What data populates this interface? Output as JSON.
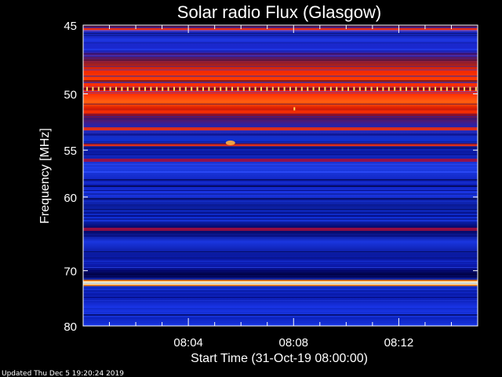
{
  "chart_data": {
    "type": "heatmap",
    "title": "Solar radio Flux (Glasgow)",
    "xlabel": "Start Time (31-Oct-19 08:00:00)",
    "ylabel": "Frequency [MHz]",
    "x_range_minutes": [
      0,
      15
    ],
    "x_ticks": [
      {
        "label": "08:04",
        "minutes": 4
      },
      {
        "label": "08:08",
        "minutes": 8
      },
      {
        "label": "08:12",
        "minutes": 12
      }
    ],
    "y_ticks": [
      45,
      50,
      55,
      60,
      70,
      80
    ],
    "ylim": [
      45,
      80
    ],
    "y_scale": "reciprocal",
    "colormap": [
      "#000000",
      "#0000a0",
      "#1e3cff",
      "#a00030",
      "#ff2000",
      "#ff8000",
      "#ffff80",
      "#ffffff"
    ],
    "bands": [
      {
        "freq": 45.3,
        "intensity": "high"
      },
      {
        "freq": 49.6,
        "intensity": "spiky"
      },
      {
        "freq": 51.5,
        "intensity": "high"
      },
      {
        "freq": 53.0,
        "intensity": "high"
      },
      {
        "freq": 54.5,
        "intensity": "high"
      },
      {
        "freq": 56.0,
        "intensity": "medium"
      },
      {
        "freq": 64.0,
        "intensity": "medium"
      },
      {
        "freq": 72.0,
        "intensity": "very-high"
      }
    ],
    "footer": "Updated Thu Dec  5 19:20:24 2019"
  }
}
